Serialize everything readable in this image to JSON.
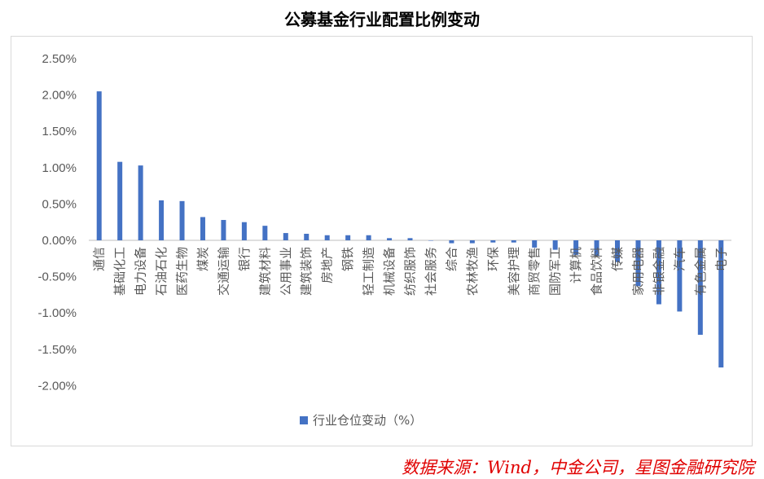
{
  "chart_data": {
    "type": "bar",
    "title": "公募基金行业配置比例变动",
    "xlabel": "",
    "ylabel": "",
    "ylim": [
      -2.0,
      2.5
    ],
    "yticks": [
      "2.50%",
      "2.00%",
      "1.50%",
      "1.00%",
      "0.50%",
      "0.00%",
      "-0.50%",
      "-1.00%",
      "-1.50%",
      "-2.00%"
    ],
    "ytick_values": [
      2.5,
      2.0,
      1.5,
      1.0,
      0.5,
      0.0,
      -0.5,
      -1.0,
      -1.5,
      -2.0
    ],
    "categories": [
      "通信",
      "基础化工",
      "电力设备",
      "石油石化",
      "医药生物",
      "煤炭",
      "交通运输",
      "银行",
      "建筑材料",
      "公用事业",
      "建筑装饰",
      "房地产",
      "钢铁",
      "轻工制造",
      "机械设备",
      "纺织服饰",
      "社会服务",
      "综合",
      "农林牧渔",
      "环保",
      "美容护理",
      "商贸零售",
      "国防军工",
      "计算机",
      "食品饮料",
      "传媒",
      "家用电器",
      "非银金融",
      "汽车",
      "有色金属",
      "电子"
    ],
    "series": [
      {
        "name": "行业仓位变动（%）",
        "color": "#4472c4",
        "values": [
          2.05,
          1.08,
          1.03,
          0.55,
          0.54,
          0.32,
          0.28,
          0.25,
          0.2,
          0.1,
          0.09,
          0.07,
          0.07,
          0.07,
          0.03,
          0.03,
          0.0,
          -0.04,
          -0.04,
          -0.03,
          -0.03,
          -0.1,
          -0.13,
          -0.2,
          -0.22,
          -0.3,
          -0.63,
          -0.88,
          -0.98,
          -1.3,
          -1.75
        ]
      }
    ],
    "legend_position": "bottom-center",
    "grid": false
  },
  "source_note": "数据来源：Wind，中金公司，星图金融研究院"
}
